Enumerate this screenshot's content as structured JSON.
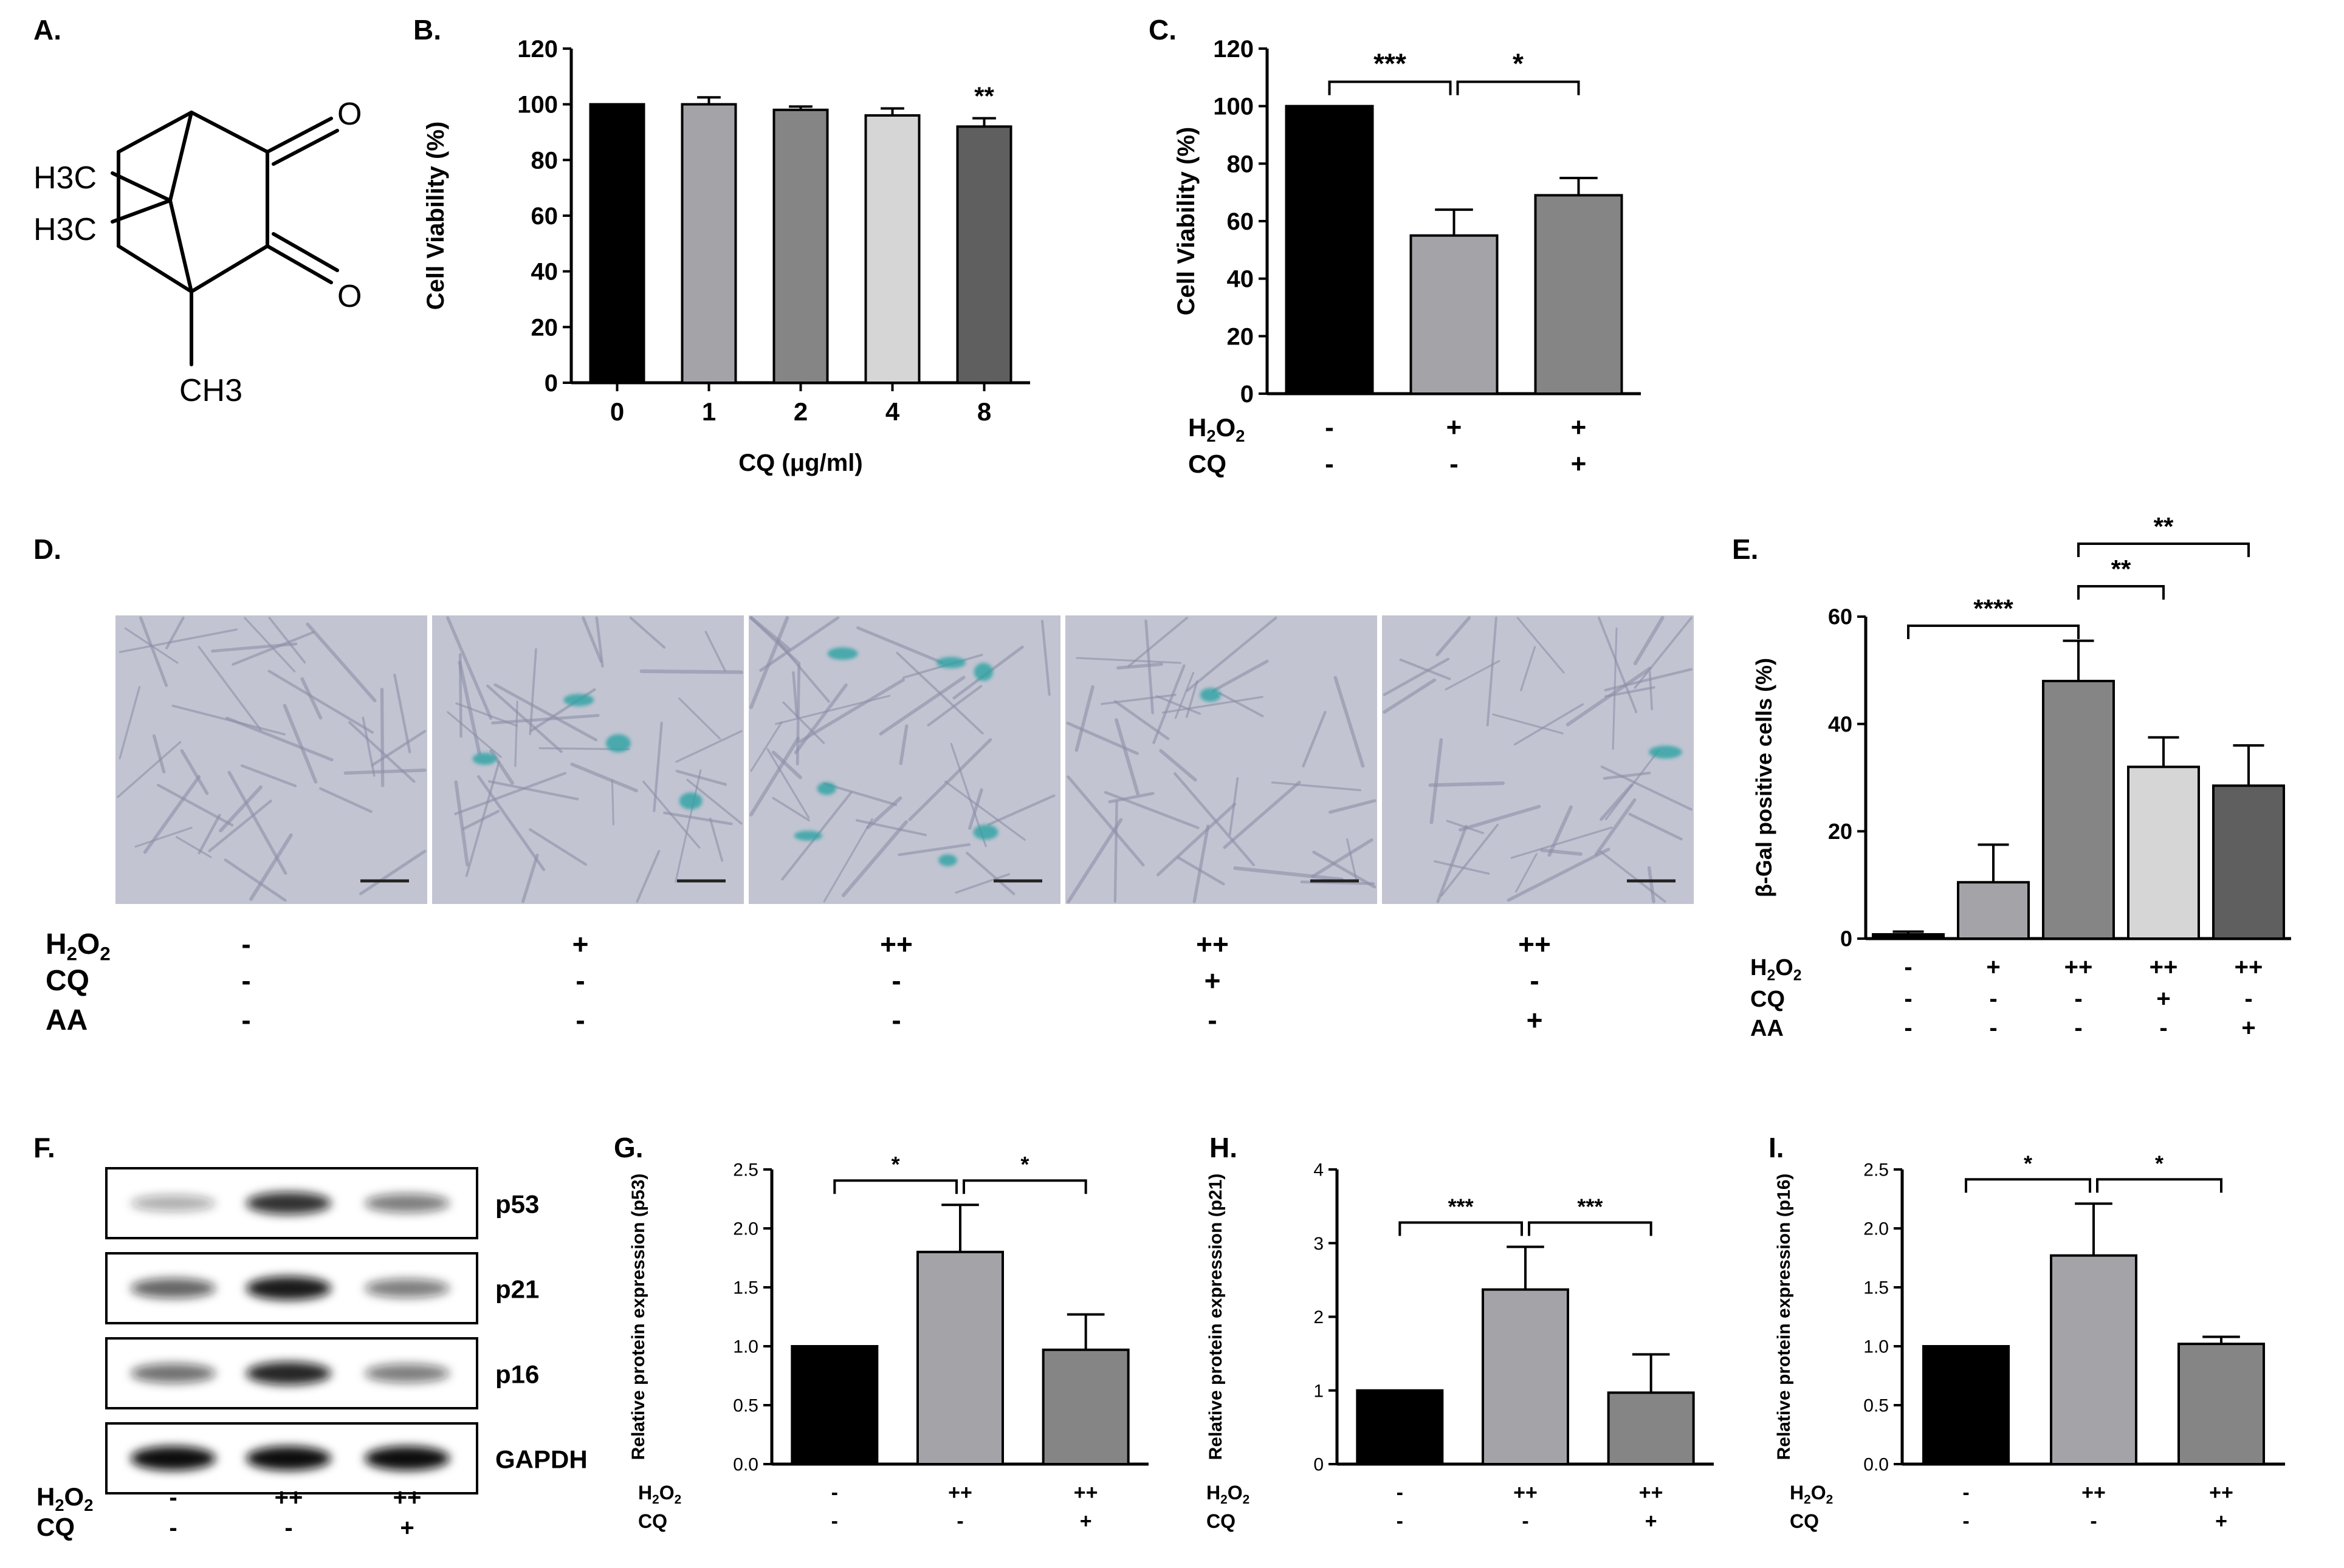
{
  "figure": {
    "panel_letters": [
      "A.",
      "B.",
      "C.",
      "D.",
      "E.",
      "F.",
      "G.",
      "H.",
      "I."
    ],
    "labels": {
      "h2o2": "H2O2",
      "cq": "CQ",
      "aa": "AA"
    },
    "colors": {
      "black": "#000000",
      "gray1": "#a3a3a8",
      "gray2": "#858585",
      "gray3": "#d6d6d6",
      "gray4": "#5f5f5f",
      "stain": "#2aa3a3",
      "cell_bg": "#c2c4d2"
    }
  },
  "structure": {
    "atoms": [
      "O",
      "O",
      "H3C",
      "H3C",
      "CH3"
    ]
  },
  "micrographs": {
    "count": 5,
    "scale_bar": true
  },
  "western_blot": {
    "bands": [
      "p53",
      "p21",
      "p16",
      "GAPDH"
    ],
    "band_intensity": [
      [
        0.35,
        0.85,
        0.55
      ],
      [
        0.65,
        0.95,
        0.55
      ],
      [
        0.6,
        0.9,
        0.55
      ],
      [
        1.0,
        1.0,
        1.0
      ]
    ],
    "conditions": {
      "h2o2": [
        "-",
        "++",
        "++"
      ],
      "cq": [
        "-",
        "-",
        "+"
      ]
    }
  },
  "chart_data": [
    {
      "id": "B",
      "type": "bar",
      "categories": [
        "0",
        "1",
        "2",
        "4",
        "8"
      ],
      "values": [
        100,
        100,
        98,
        96,
        92
      ],
      "errors": [
        0,
        2.5,
        1.2,
        2.5,
        3
      ],
      "colors": [
        "#000000",
        "#a3a3a8",
        "#858585",
        "#d6d6d6",
        "#5f5f5f"
      ],
      "ylabel": "Cell Viability (%)",
      "xlabel": "CQ (μg/ml)",
      "ylim": [
        0,
        120
      ],
      "yticks": [
        "0",
        "20",
        "40",
        "60",
        "80",
        "100",
        "120"
      ],
      "annotations": [
        {
          "bar": 4,
          "text": "**"
        }
      ]
    },
    {
      "id": "C",
      "type": "bar",
      "categories": [
        "",
        "",
        ""
      ],
      "values": [
        100,
        55,
        69
      ],
      "errors": [
        0,
        9,
        6
      ],
      "colors": [
        "#000000",
        "#a3a3a8",
        "#858585"
      ],
      "ylabel": "Cell Viability (%)",
      "ylim": [
        0,
        120
      ],
      "yticks": [
        "0",
        "20",
        "40",
        "60",
        "80",
        "100",
        "120"
      ],
      "conditions": {
        "h2o2": [
          "-",
          "+",
          "+"
        ],
        "cq": [
          "-",
          "-",
          "+"
        ]
      },
      "brackets": [
        {
          "from": 0,
          "to": 1,
          "text": "***"
        },
        {
          "from": 1,
          "to": 2,
          "text": "*"
        }
      ]
    },
    {
      "id": "E",
      "type": "bar",
      "categories": [
        "",
        "",
        "",
        "",
        ""
      ],
      "values": [
        0.8,
        10.5,
        48,
        32,
        28.5
      ],
      "errors": [
        0.5,
        7,
        7.5,
        5.5,
        7.5
      ],
      "colors": [
        "#000000",
        "#a3a3a8",
        "#858585",
        "#d6d6d6",
        "#5f5f5f"
      ],
      "ylabel": "β-Gal positive cells (%)",
      "ylim": [
        0,
        60
      ],
      "yticks": [
        "0",
        "20",
        "40",
        "60"
      ],
      "conditions": {
        "h2o2": [
          "-",
          "+",
          "++",
          "++",
          "++"
        ],
        "cq": [
          "-",
          "-",
          "-",
          "+",
          "-"
        ],
        "aa": [
          "-",
          "-",
          "-",
          "-",
          "+"
        ]
      },
      "brackets": [
        {
          "from": 0,
          "to": 2,
          "text": "****"
        },
        {
          "from": 2,
          "to": 3,
          "text": "**"
        },
        {
          "from": 2,
          "to": 4,
          "text": "**"
        }
      ]
    },
    {
      "id": "G",
      "type": "bar",
      "categories": [
        "",
        "",
        ""
      ],
      "values": [
        1.0,
        1.8,
        0.97
      ],
      "errors": [
        0,
        0.4,
        0.3
      ],
      "colors": [
        "#000000",
        "#a3a3a8",
        "#858585"
      ],
      "ylabel": "Relative protein expression (p53)",
      "ylim": [
        0,
        2.5
      ],
      "yticks": [
        "0.0",
        "0.5",
        "1.0",
        "1.5",
        "2.0",
        "2.5"
      ],
      "conditions": {
        "h2o2": [
          "-",
          "++",
          "++"
        ],
        "cq": [
          "-",
          "-",
          "+"
        ]
      },
      "brackets": [
        {
          "from": 0,
          "to": 1,
          "text": "*"
        },
        {
          "from": 1,
          "to": 2,
          "text": "*"
        }
      ]
    },
    {
      "id": "H",
      "type": "bar",
      "categories": [
        "",
        "",
        ""
      ],
      "values": [
        1.0,
        2.37,
        0.97
      ],
      "errors": [
        0,
        0.58,
        0.52
      ],
      "colors": [
        "#000000",
        "#a3a3a8",
        "#858585"
      ],
      "ylabel": "Relative protein expression (p21)",
      "ylim": [
        0,
        4
      ],
      "yticks": [
        "0",
        "1",
        "2",
        "3",
        "4"
      ],
      "conditions": {
        "h2o2": [
          "-",
          "++",
          "++"
        ],
        "cq": [
          "-",
          "-",
          "+"
        ]
      },
      "brackets": [
        {
          "from": 0,
          "to": 1,
          "text": "***"
        },
        {
          "from": 1,
          "to": 2,
          "text": "***"
        }
      ]
    },
    {
      "id": "I",
      "type": "bar",
      "categories": [
        "",
        "",
        ""
      ],
      "values": [
        1.0,
        1.77,
        1.02
      ],
      "errors": [
        0,
        0.44,
        0.06
      ],
      "colors": [
        "#000000",
        "#a3a3a8",
        "#858585"
      ],
      "ylabel": "Relative protein expression (p16)",
      "ylim": [
        0,
        2.5
      ],
      "yticks": [
        "0.0",
        "0.5",
        "1.0",
        "1.5",
        "2.0",
        "2.5"
      ],
      "conditions": {
        "h2o2": [
          "-",
          "++",
          "++"
        ],
        "cq": [
          "-",
          "-",
          "+"
        ]
      },
      "brackets": [
        {
          "from": 0,
          "to": 1,
          "text": "*"
        },
        {
          "from": 1,
          "to": 2,
          "text": "*"
        }
      ]
    }
  ],
  "micrograph_conditions": {
    "h2o2": [
      "-",
      "+",
      "++",
      "++",
      "++"
    ],
    "cq": [
      "-",
      "-",
      "-",
      "+",
      "-"
    ],
    "aa": [
      "-",
      "-",
      "-",
      "-",
      "+"
    ]
  }
}
